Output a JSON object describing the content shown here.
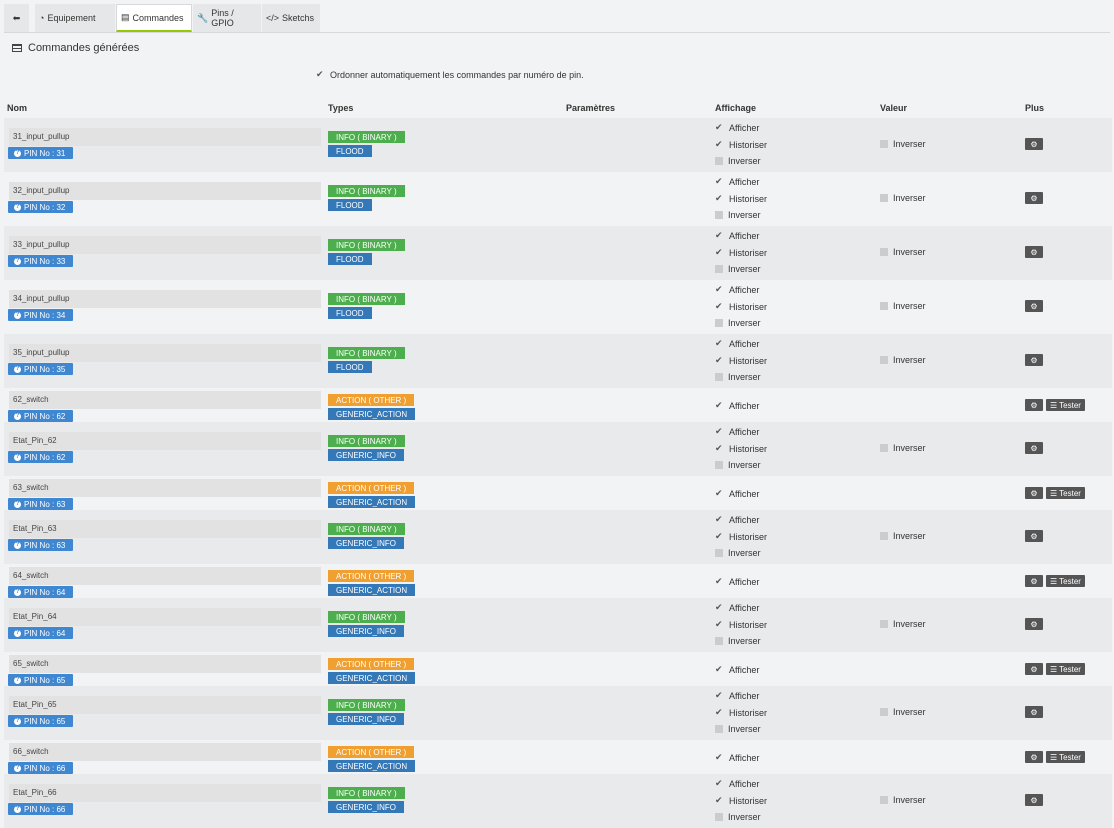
{
  "tabs": [
    {
      "name": "tab-back",
      "icon": "arrow-left-circle-icon",
      "glyph": "⬅",
      "label": ""
    },
    {
      "name": "tab-equipement",
      "icon": "tachometer-icon",
      "glyph": "◔",
      "label": "Equipement"
    },
    {
      "name": "tab-commandes",
      "icon": "list-icon",
      "glyph": "▤",
      "label": "Commandes"
    },
    {
      "name": "tab-pins-gpio",
      "icon": "wrench-icon",
      "glyph": "🔧",
      "label": "Pins / GPIO"
    },
    {
      "name": "tab-sketchs",
      "icon": "code-icon",
      "glyph": "</>",
      "label": "Sketchs"
    }
  ],
  "section": {
    "title": "Commandes générées",
    "icon": "list-icon"
  },
  "auto_order": {
    "label": "Ordonner automatiquement les commandes par numéro de pin.",
    "checked": true
  },
  "columns": {
    "nom": "Nom",
    "types": "Types",
    "parametres": "Paramètres",
    "affichage": "Affichage",
    "valeur": "Valeur",
    "plus": "Plus"
  },
  "labels": {
    "afficher": "Afficher",
    "historiser": "Historiser",
    "inverser": "Inverser",
    "valeur_inverser": "Inverser",
    "tester": "Tester"
  },
  "icons": {
    "checked": "check-icon",
    "unchecked": "checkbox-empty-icon",
    "pin_help": "question-circle-icon",
    "gear": "cogs-icon",
    "rss": "rss-icon"
  },
  "colors": {
    "info": "#4cae4c",
    "action": "#f0a030",
    "subtype": "#3478b7",
    "pin": "#3f88d1",
    "active_tab": "#94ca02"
  },
  "commands": [
    {
      "name": "31_input_pullup",
      "pin": "PIN No : 31",
      "type": "INFO ( BINARY )",
      "kind": "info",
      "subtype": "FLOOD"
    },
    {
      "name": "32_input_pullup",
      "pin": "PIN No : 32",
      "type": "INFO ( BINARY )",
      "kind": "info",
      "subtype": "FLOOD"
    },
    {
      "name": "33_input_pullup",
      "pin": "PIN No : 33",
      "type": "INFO ( BINARY )",
      "kind": "info",
      "subtype": "FLOOD"
    },
    {
      "name": "34_input_pullup",
      "pin": "PIN No : 34",
      "type": "INFO ( BINARY )",
      "kind": "info",
      "subtype": "FLOOD"
    },
    {
      "name": "35_input_pullup",
      "pin": "PIN No : 35",
      "type": "INFO ( BINARY )",
      "kind": "info",
      "subtype": "FLOOD"
    },
    {
      "name": "62_switch",
      "pin": "PIN No : 62",
      "type": "ACTION ( OTHER )",
      "kind": "action",
      "subtype": "GENERIC_ACTION"
    },
    {
      "name": "Etat_Pin_62",
      "pin": "PIN No : 62",
      "type": "INFO ( BINARY )",
      "kind": "info",
      "subtype": "GENERIC_INFO"
    },
    {
      "name": "63_switch",
      "pin": "PIN No : 63",
      "type": "ACTION ( OTHER )",
      "kind": "action",
      "subtype": "GENERIC_ACTION"
    },
    {
      "name": "Etat_Pin_63",
      "pin": "PIN No : 63",
      "type": "INFO ( BINARY )",
      "kind": "info",
      "subtype": "GENERIC_INFO"
    },
    {
      "name": "64_switch",
      "pin": "PIN No : 64",
      "type": "ACTION ( OTHER )",
      "kind": "action",
      "subtype": "GENERIC_ACTION"
    },
    {
      "name": "Etat_Pin_64",
      "pin": "PIN No : 64",
      "type": "INFO ( BINARY )",
      "kind": "info",
      "subtype": "GENERIC_INFO"
    },
    {
      "name": "65_switch",
      "pin": "PIN No : 65",
      "type": "ACTION ( OTHER )",
      "kind": "action",
      "subtype": "GENERIC_ACTION"
    },
    {
      "name": "Etat_Pin_65",
      "pin": "PIN No : 65",
      "type": "INFO ( BINARY )",
      "kind": "info",
      "subtype": "GENERIC_INFO"
    },
    {
      "name": "66_switch",
      "pin": "PIN No : 66",
      "type": "ACTION ( OTHER )",
      "kind": "action",
      "subtype": "GENERIC_ACTION"
    },
    {
      "name": "Etat_Pin_66",
      "pin": "PIN No : 66",
      "type": "INFO ( BINARY )",
      "kind": "info",
      "subtype": "GENERIC_INFO"
    }
  ]
}
